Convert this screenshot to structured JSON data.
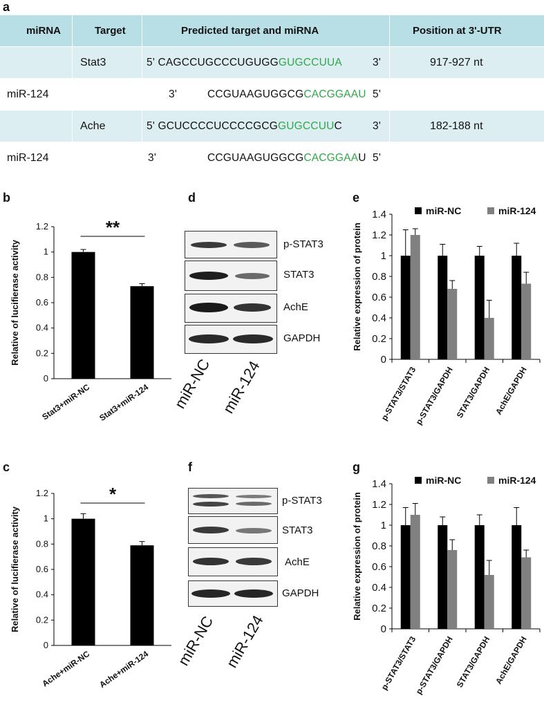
{
  "panels": {
    "a": "a",
    "b": "b",
    "c": "c",
    "d": "d",
    "e": "e",
    "f": "f",
    "g": "g"
  },
  "table": {
    "headers": [
      "miRNA",
      "Target",
      "Predicted target and miRNA",
      "Position at 3'-UTR"
    ],
    "rows": [
      {
        "mirna": "",
        "target": "Stat3",
        "p5": "5'",
        "black": "CAGCCUGCCCUGUGG",
        "green": "GUGCCUUA",
        "tail": "",
        "p3": "3'",
        "position": "917-927  nt"
      },
      {
        "mirna": "miR-124",
        "target": "",
        "p5": "3'",
        "black": "CCGUAAGUGGCG",
        "green": "CACGGAAU",
        "tail": "",
        "p3": "5'",
        "position": ""
      },
      {
        "mirna": "",
        "target": "Ache",
        "p5": "5'",
        "black": "GCUCCCCUCCCCGCG",
        "green": "GUGCCUU",
        "tail": "C",
        "p3": "3'",
        "position": "182-188  nt"
      },
      {
        "mirna": "miR-124",
        "target": "",
        "p5": "3'",
        "black": "CCGUAAGUGGCG",
        "green": "CACGGAA",
        "tail": "U",
        "p3": "5'",
        "position": ""
      }
    ]
  },
  "blots": {
    "d": {
      "labels": [
        "p-STAT3",
        "STAT3",
        "AchE",
        "GAPDH"
      ],
      "lanes": [
        "miR-NC",
        "miR-124"
      ]
    },
    "f": {
      "labels": [
        "p-STAT3",
        "STAT3",
        "AchE",
        "GAPDH"
      ],
      "lanes": [
        "miR-NC",
        "miR-124"
      ]
    }
  },
  "colors": {
    "black": "#000000",
    "gray": "#808080",
    "green": "#2ea84a",
    "table_head": "#b9dfe6",
    "table_shade": "#dceef2"
  },
  "chart_data": [
    {
      "id": "b",
      "type": "bar",
      "categories": [
        "Stat3+miR-NC",
        "Stat3+miR-124"
      ],
      "values": [
        1.0,
        0.73
      ],
      "errors": [
        0.02,
        0.02
      ],
      "ylabel": "Relative of lucifierase activity",
      "ylim": [
        0,
        1.2
      ],
      "yticks": [
        "0",
        "0.2",
        "0.4",
        "0.6",
        "0.8",
        "1",
        "1.2"
      ],
      "significance": "**"
    },
    {
      "id": "c",
      "type": "bar",
      "categories": [
        "Ache+miR-NC",
        "Ache+miR-124"
      ],
      "values": [
        1.0,
        0.79
      ],
      "errors": [
        0.04,
        0.03
      ],
      "ylabel": "Relative of lucifierase activity",
      "ylim": [
        0,
        1.2
      ],
      "yticks": [
        "0",
        "0.2",
        "0.4",
        "0.6",
        "0.8",
        "1",
        "1.2"
      ],
      "significance": "*"
    },
    {
      "id": "e",
      "type": "bar",
      "categories": [
        "p-STAT3/STAT3",
        "p-STAT3/GAPDH",
        "STAT3/GAPDH",
        "AchE/GAPDH"
      ],
      "series": [
        {
          "name": "miR-NC",
          "values": [
            1.0,
            1.0,
            1.0,
            1.0
          ],
          "errors": [
            0.25,
            0.11,
            0.09,
            0.12
          ]
        },
        {
          "name": "miR-124",
          "values": [
            1.2,
            0.68,
            0.4,
            0.73
          ],
          "errors": [
            0.06,
            0.08,
            0.17,
            0.11
          ]
        }
      ],
      "ylabel": "Relative expression of protein",
      "ylim": [
        0,
        1.4
      ],
      "yticks": [
        "0",
        "0.2",
        "0.4",
        "0.6",
        "0.8",
        "1",
        "1.2",
        "1.4"
      ],
      "legend": "top"
    },
    {
      "id": "g",
      "type": "bar",
      "categories": [
        "p-STAT3/STAT3",
        "p-STAT3/GAPDH",
        "STAT3/GAPDH",
        "AchE/GAPDH"
      ],
      "series": [
        {
          "name": "miR-NC",
          "values": [
            1.0,
            1.0,
            1.0,
            1.0
          ],
          "errors": [
            0.17,
            0.08,
            0.1,
            0.17
          ]
        },
        {
          "name": "miR-124",
          "values": [
            1.1,
            0.76,
            0.52,
            0.69
          ],
          "errors": [
            0.11,
            0.1,
            0.14,
            0.07
          ]
        }
      ],
      "ylabel": "Relative expression of protein",
      "ylim": [
        0,
        1.4
      ],
      "yticks": [
        "0",
        "0.2",
        "0.4",
        "0.6",
        "0.8",
        "1",
        "1.2",
        "1.4"
      ],
      "legend": "top"
    }
  ]
}
